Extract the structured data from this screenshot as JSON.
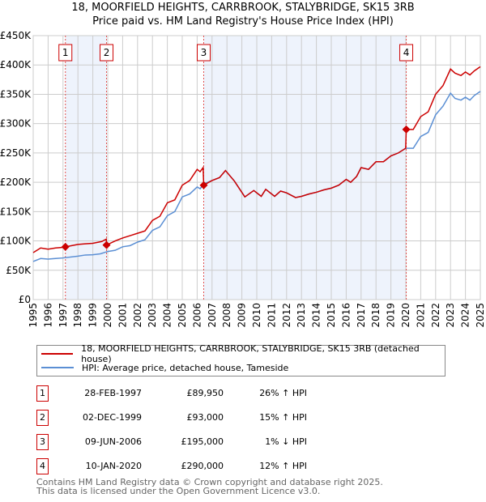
{
  "chart_data": {
    "type": "line",
    "title": "18, MOORFIELD HEIGHTS, CARRBROOK, STALYBRIDGE, SK15 3RB",
    "subtitle": "Price paid vs. HM Land Registry's House Price Index (HPI)",
    "xlim": [
      1995,
      2025
    ],
    "ylim": [
      0,
      450000
    ],
    "x_ticks": [
      "1995",
      "1996",
      "1997",
      "1998",
      "1999",
      "2000",
      "2001",
      "2002",
      "2003",
      "2004",
      "2005",
      "2006",
      "2007",
      "2008",
      "2009",
      "2010",
      "2011",
      "2012",
      "2013",
      "2014",
      "2015",
      "2016",
      "2017",
      "2018",
      "2019",
      "2020",
      "2021",
      "2022",
      "2023",
      "2024",
      "2025"
    ],
    "y_ticks": [
      {
        "v": 0,
        "label": "£0"
      },
      {
        "v": 50000,
        "label": "£50K"
      },
      {
        "v": 100000,
        "label": "£100K"
      },
      {
        "v": 150000,
        "label": "£150K"
      },
      {
        "v": 200000,
        "label": "£200K"
      },
      {
        "v": 250000,
        "label": "£250K"
      },
      {
        "v": 300000,
        "label": "£300K"
      },
      {
        "v": 350000,
        "label": "£350K"
      },
      {
        "v": 400000,
        "label": "£400K"
      },
      {
        "v": 450000,
        "label": "£450K"
      }
    ],
    "grid": true,
    "series": [
      {
        "name": "18, MOORFIELD HEIGHTS, CARRBROOK, STALYBRIDGE, SK15 3RB (detached house)",
        "color": "#cc0000",
        "x": [
          1995,
          1995.5,
          1996,
          1996.5,
          1997,
          1997.16,
          1998,
          1998.5,
          1999,
          1999.6,
          1999.9,
          1999.92,
          2000.5,
          2001,
          2001.5,
          2002,
          2002.5,
          2003,
          2003.5,
          2004,
          2004.5,
          2005,
          2005.5,
          2006,
          2006.2,
          2006.4,
          2006.44,
          2007,
          2007.5,
          2007.9,
          2008.5,
          2009.2,
          2009.8,
          2010.3,
          2010.6,
          2011.2,
          2011.6,
          2012,
          2012.6,
          2013,
          2013.5,
          2014,
          2014.5,
          2015,
          2015.5,
          2016,
          2016.3,
          2016.7,
          2017,
          2017.5,
          2018,
          2018.5,
          2019,
          2019.5,
          2019.99,
          2020.03,
          2020.5,
          2021,
          2021.5,
          2022,
          2022.5,
          2023,
          2023.3,
          2023.7,
          2024,
          2024.3,
          2024.6,
          2025
        ],
        "y": [
          80000,
          88000,
          86000,
          88000,
          89000,
          89950,
          94000,
          95000,
          96000,
          99000,
          103000,
          93000,
          100000,
          105000,
          109000,
          113000,
          117000,
          135000,
          142000,
          165000,
          170000,
          195000,
          203000,
          222000,
          218000,
          225000,
          195000,
          203000,
          208000,
          220000,
          202000,
          175000,
          186000,
          176000,
          188000,
          176000,
          185000,
          182000,
          174000,
          176000,
          180000,
          183000,
          187000,
          190000,
          195000,
          205000,
          200000,
          210000,
          225000,
          222000,
          235000,
          235000,
          245000,
          250000,
          258000,
          290000,
          290000,
          312000,
          320000,
          350000,
          365000,
          393000,
          386000,
          382000,
          388000,
          383000,
          390000,
          397000
        ]
      },
      {
        "name": "HPI: Average price, detached house, Tameside",
        "color": "#5b8fd4",
        "x": [
          1995,
          1995.5,
          1996,
          1996.5,
          1997,
          1998,
          1998.5,
          1999,
          1999.5,
          2000,
          2000.5,
          2001,
          2001.5,
          2002,
          2002.5,
          2003,
          2003.5,
          2004,
          2004.5,
          2005,
          2005.5,
          2006,
          2006.2,
          2006.44,
          2007,
          2007.5,
          2007.9,
          2008.5,
          2009.2,
          2009.8,
          2010.3,
          2010.6,
          2011.2,
          2011.6,
          2012,
          2012.6,
          2013,
          2013.5,
          2014,
          2014.5,
          2015,
          2015.5,
          2016,
          2016.3,
          2016.7,
          2017,
          2017.5,
          2018,
          2018.5,
          2019,
          2019.5,
          2020,
          2020.5,
          2021,
          2021.5,
          2022,
          2022.5,
          2023,
          2023.3,
          2023.7,
          2024,
          2024.3,
          2024.6,
          2025
        ],
        "y": [
          65000,
          70000,
          69000,
          70000,
          71000,
          74000,
          76000,
          76500,
          78000,
          82000,
          84000,
          90000,
          92000,
          98000,
          102000,
          118000,
          124000,
          143000,
          150000,
          175000,
          180000,
          192000,
          189000,
          197000,
          203000,
          208000,
          220000,
          202000,
          175000,
          186000,
          176000,
          188000,
          176000,
          185000,
          182000,
          174000,
          176000,
          180000,
          183000,
          187000,
          190000,
          195000,
          205000,
          200000,
          210000,
          225000,
          222000,
          235000,
          235000,
          245000,
          250000,
          258000,
          258000,
          278000,
          285000,
          315000,
          330000,
          352000,
          343000,
          340000,
          345000,
          340000,
          348000,
          355000
        ]
      }
    ],
    "sales": [
      {
        "n": "1",
        "x": 1997.16,
        "y": 89950,
        "date": "28-FEB-1997",
        "price": "£89,950",
        "hpi": "26% ↑ HPI"
      },
      {
        "n": "2",
        "x": 1999.92,
        "y": 93000,
        "date": "02-DEC-1999",
        "price": "£93,000",
        "hpi": "15% ↑ HPI"
      },
      {
        "n": "3",
        "x": 2006.44,
        "y": 195000,
        "date": "09-JUN-2006",
        "price": "£195,000",
        "hpi": "1% ↓ HPI"
      },
      {
        "n": "4",
        "x": 2020.03,
        "y": 290000,
        "date": "10-JAN-2020",
        "price": "£290,000",
        "hpi": "12% ↑ HPI"
      }
    ],
    "shaded": [
      [
        1997.16,
        1999.92
      ],
      [
        2006.44,
        2020.03
      ]
    ]
  },
  "title_line1": "18, MOORFIELD HEIGHTS, CARRBROOK, STALYBRIDGE, SK15 3RB",
  "title_line2": "Price paid vs. HM Land Registry's House Price Index (HPI)",
  "legend": {
    "property": "18, MOORFIELD HEIGHTS, CARRBROOK, STALYBRIDGE, SK15 3RB (detached house)",
    "hpi": "HPI: Average price, detached house, Tameside"
  },
  "footer": {
    "line1": "Contains HM Land Registry data © Crown copyright and database right 2025.",
    "line2": "This data is licensed under the Open Government Licence v3.0."
  }
}
